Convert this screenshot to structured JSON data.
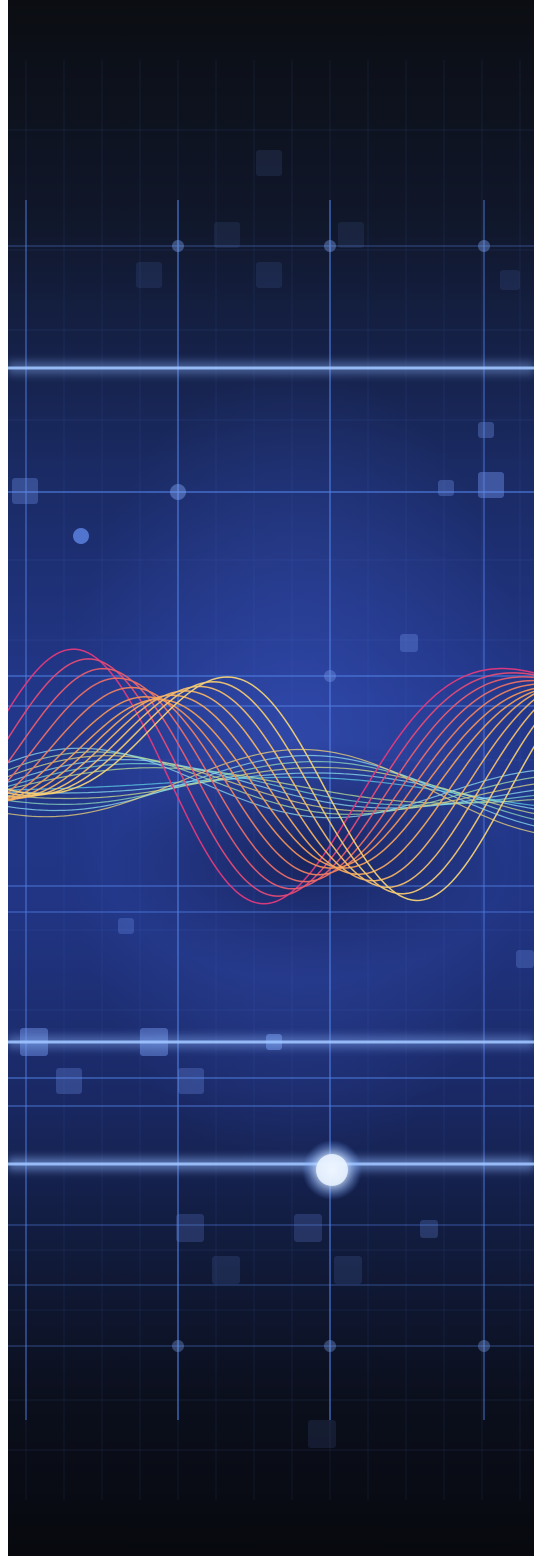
{
  "artwork": {
    "subject": "abstract-waveform-grid",
    "colors": {
      "background_top": "#0b0d12",
      "background_mid": "#1c2f78",
      "background_bottom": "#07090e",
      "grid_line": "#4f7de0",
      "grid_glow": "#9fc4ff",
      "wave_magenta": "#e23a7c",
      "wave_orange": "#f29a55",
      "wave_yellow": "#f4d276",
      "wave_cyan": "#5fd0e8",
      "wave_green": "#b9e59a"
    },
    "warm_wave_count": 12,
    "cool_wave_count": 12
  }
}
